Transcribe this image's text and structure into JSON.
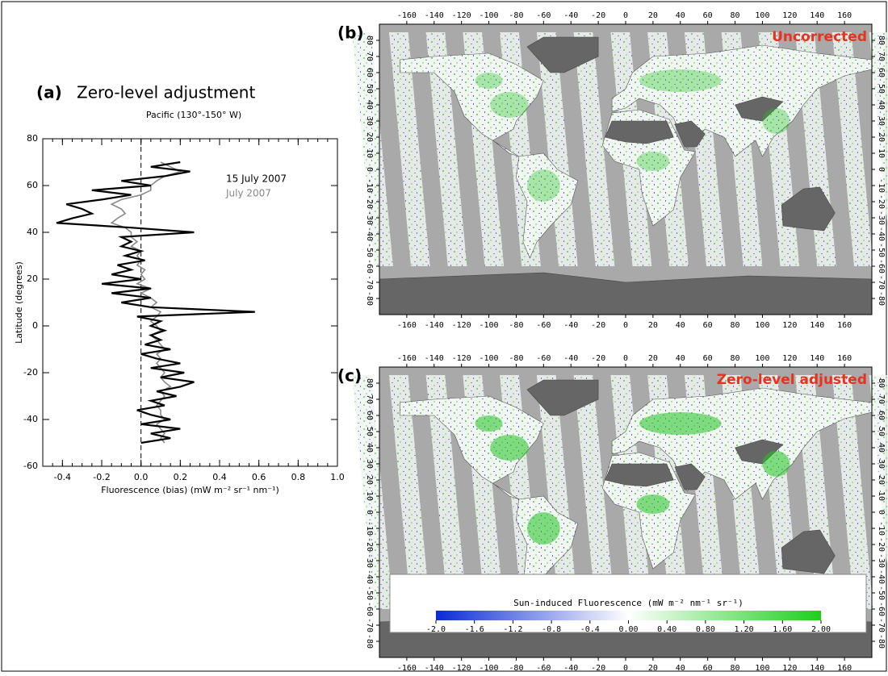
{
  "chart_data": [
    {
      "type": "line",
      "panel_label": "(a)",
      "title": "Zero-level adjustment",
      "subtitle": "Pacific (130°-150° W)",
      "x_label": "Fluorescence (bias) (mW m⁻² sr⁻¹ nm⁻¹)",
      "y_label": "Latitude (degrees)",
      "xlim": [
        -0.5,
        1.0
      ],
      "ylim": [
        -60,
        80
      ],
      "xticks": [
        -0.4,
        -0.2,
        {
          "value": 0,
          "label": "0.0"
        },
        0.2,
        0.4,
        0.6,
        0.8,
        {
          "value": 1,
          "label": "1.0"
        }
      ],
      "yticks": [
        -60,
        -40,
        -20,
        0,
        20,
        40,
        60,
        80
      ],
      "y": [
        -50,
        -48,
        -46,
        -44,
        -42,
        -40,
        -38,
        -36,
        -34,
        -32,
        -30,
        -28,
        -26,
        -24,
        -22,
        -20,
        -18,
        -16,
        -14,
        -12,
        -10,
        -8,
        -6,
        -4,
        -2,
        0,
        2,
        4,
        6,
        8,
        10,
        12,
        14,
        16,
        18,
        20,
        22,
        24,
        26,
        28,
        30,
        32,
        34,
        36,
        38,
        40,
        42,
        44,
        46,
        48,
        50,
        52,
        54,
        56,
        58,
        60,
        62,
        64,
        66,
        68,
        70
      ],
      "series": [
        {
          "name": "15 July 2007",
          "color": "#000000",
          "values": [
            0.0,
            0.15,
            0.05,
            0.2,
            0.0,
            0.15,
            0.05,
            -0.02,
            0.12,
            0.05,
            0.18,
            0.08,
            0.2,
            0.27,
            0.1,
            0.22,
            0.05,
            0.2,
            0.08,
            0.0,
            0.15,
            0.02,
            0.1,
            0.05,
            0.12,
            0.05,
            0.1,
            -0.02,
            0.58,
            0.05,
            -0.1,
            0.05,
            -0.15,
            0.05,
            -0.2,
            0.0,
            -0.15,
            -0.05,
            -0.12,
            0.02,
            -0.08,
            0.0,
            -0.1,
            -0.05,
            -0.1,
            0.27,
            -0.05,
            -0.43,
            -0.35,
            -0.25,
            -0.3,
            -0.38,
            -0.2,
            -0.05,
            -0.25,
            0.05,
            -0.1,
            0.12,
            0.25,
            0.05,
            0.2
          ]
        },
        {
          "name": "July 2007",
          "color": "#888888",
          "values": [
            0.12,
            0.1,
            0.12,
            0.1,
            0.08,
            0.12,
            0.1,
            0.1,
            0.08,
            0.1,
            0.12,
            0.1,
            0.15,
            0.12,
            0.1,
            0.12,
            0.1,
            0.08,
            0.1,
            0.08,
            0.12,
            0.1,
            0.08,
            0.05,
            0.1,
            0.08,
            0.05,
            0.08,
            0.1,
            0.05,
            0.08,
            0.05,
            0.0,
            0.05,
            -0.02,
            0.02,
            0.0,
            0.02,
            -0.02,
            0.0,
            -0.02,
            0.0,
            -0.05,
            -0.02,
            -0.05,
            -0.05,
            -0.08,
            -0.15,
            -0.12,
            -0.08,
            -0.1,
            -0.15,
            -0.1,
            0.0,
            0.05,
            0.05,
            0.08,
            0.12,
            0.2,
            0.15,
            0.1
          ]
        }
      ]
    },
    {
      "type": "map",
      "panel_label": "(b)",
      "label": "Uncorrected",
      "label_color": "#e8321e",
      "xlim": [
        -180,
        180
      ],
      "ylim": [
        -90,
        90
      ],
      "xticks": [
        -160,
        -140,
        -120,
        -100,
        -80,
        -60,
        -40,
        -20,
        0,
        20,
        40,
        60,
        80,
        100,
        120,
        140,
        160
      ],
      "yticks": [
        -80,
        -70,
        -60,
        -50,
        -40,
        -30,
        -20,
        -10,
        0,
        10,
        20,
        30,
        40,
        50,
        60,
        70,
        80
      ]
    },
    {
      "type": "map",
      "panel_label": "(c)",
      "label": "Zero-level adjusted",
      "label_color": "#e8321e",
      "xlim": [
        -180,
        180
      ],
      "ylim": [
        -90,
        90
      ],
      "xticks": [
        -160,
        -140,
        -120,
        -100,
        -80,
        -60,
        -40,
        -20,
        0,
        20,
        40,
        60,
        80,
        100,
        120,
        140,
        160
      ],
      "yticks": [
        -80,
        -70,
        -60,
        -50,
        -40,
        -30,
        -20,
        -10,
        0,
        10,
        20,
        30,
        40,
        50,
        60,
        70,
        80
      ],
      "colorbar_label": "Sun-induced Fluorescence (mW m⁻² nm⁻¹ sr⁻¹)",
      "colorbar_lim": [
        -2,
        2
      ],
      "colorbar_ticks": [
        {
          "value": -2,
          "label": "-2.0"
        },
        -1.6,
        -1.2,
        -0.8,
        -0.4,
        {
          "value": 0,
          "label": "0.00"
        },
        {
          "value": 0.4,
          "label": "0.40"
        },
        {
          "value": 0.8,
          "label": "0.80"
        },
        {
          "value": 1.2,
          "label": "1.20"
        },
        {
          "value": 1.6,
          "label": "1.60"
        },
        {
          "value": 2,
          "label": "2.00"
        }
      ]
    }
  ]
}
